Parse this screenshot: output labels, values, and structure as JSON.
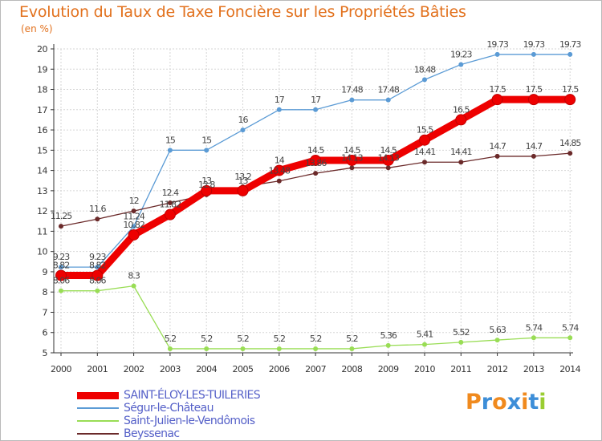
{
  "chart_data": {
    "type": "line",
    "title": "Evolution du Taux de Taxe Foncière sur les Propriétés Bâties",
    "unit_label": "(en %)",
    "categories": [
      "2000",
      "2001",
      "2002",
      "2003",
      "2004",
      "2005",
      "2006",
      "2007",
      "2008",
      "2009",
      "2010",
      "2011",
      "2012",
      "2013",
      "2014"
    ],
    "ylim": [
      5,
      20
    ],
    "yticks": [
      5,
      6,
      7,
      8,
      9,
      10,
      11,
      12,
      13,
      14,
      15,
      16,
      17,
      18,
      19,
      20
    ],
    "grid": true,
    "series": [
      {
        "name": "SAINT-ÉLOY-LES-TUILERIES",
        "color": "#ee0000",
        "bold": true,
        "values": [
          8.82,
          8.82,
          10.82,
          11.82,
          13,
          13,
          14,
          14.5,
          14.5,
          14.5,
          15.5,
          16.5,
          17.5,
          17.5,
          17.5
        ],
        "labels": [
          "8.82",
          "8.82",
          "10.82",
          "11.82",
          "13",
          "13",
          "14",
          "14.5",
          "14.5",
          "14.5",
          "15.5",
          "16.5",
          "17.5",
          "17.5",
          "17.5"
        ]
      },
      {
        "name": "Ségur-le-Château",
        "color": "#5b9bd5",
        "values": [
          9.23,
          9.23,
          11.24,
          15,
          15,
          16,
          17,
          17,
          17.48,
          17.48,
          18.48,
          19.23,
          19.73,
          19.73,
          19.73
        ],
        "labels": [
          "9.23",
          "9.23",
          "11.24",
          "15",
          "15",
          "16",
          "17",
          "17",
          "17.48",
          "17.48",
          "18.48",
          "19.23",
          "19.73",
          "19.73",
          "19.73"
        ]
      },
      {
        "name": "Saint-Julien-le-Vendômois",
        "color": "#99dd55",
        "values": [
          8.06,
          8.06,
          8.3,
          5.2,
          5.2,
          5.2,
          5.2,
          5.2,
          5.2,
          5.36,
          5.41,
          5.52,
          5.63,
          5.74,
          5.74
        ],
        "labels": [
          "8.06",
          "8.06",
          "8.3",
          "5.2",
          "5.2",
          "5.2",
          "5.2",
          "5.2",
          "5.2",
          "5.36",
          "5.41",
          "5.52",
          "5.63",
          "5.74",
          "5.74"
        ]
      },
      {
        "name": "Beyssenac",
        "color": "#6b2a2a",
        "values": [
          11.25,
          11.6,
          12,
          12.4,
          12.8,
          13.2,
          13.48,
          13.86,
          14.13,
          14.13,
          14.41,
          14.41,
          14.7,
          14.7,
          14.85
        ],
        "labels": [
          "11.25",
          "11.6",
          "12",
          "12.4",
          "12.8",
          "13.2",
          "13.48",
          "13.86",
          "14.13",
          "14.13",
          "14.41",
          "14.41",
          "14.7",
          "14.7",
          "14.85"
        ]
      }
    ]
  },
  "legend": {
    "items": [
      {
        "label": "SAINT-ÉLOY-LES-TUILERIES",
        "color": "#ee0000",
        "bold": true
      },
      {
        "label": "Ségur-le-Château",
        "color": "#5b9bd5"
      },
      {
        "label": "Saint-Julien-le-Vendômois",
        "color": "#99dd55"
      },
      {
        "label": "Beyssenac",
        "color": "#6b2a2a"
      }
    ]
  },
  "logo": {
    "text": "Proxiti",
    "letter_colors": [
      "#f08a1e",
      "#3d8ed8",
      "#f08a1e",
      "#3d8ed8",
      "#f08a1e",
      "#3d8ed8",
      "#9acd32"
    ]
  }
}
